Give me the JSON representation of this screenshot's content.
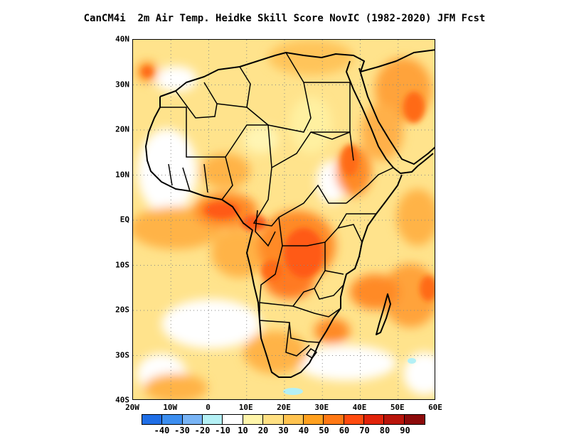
{
  "title": "CanCM4i  2m Air Temp. Heidke Skill Score NovIC (1982-2020) JFM Fcst",
  "map": {
    "lat_range": [
      -40,
      40
    ],
    "lon_range": [
      -20,
      60
    ],
    "grid": "dotted",
    "lat_labels": [
      "40N",
      "30N",
      "20N",
      "10N",
      "EQ",
      "10S",
      "20S",
      "30S",
      "40S"
    ],
    "lon_labels": [
      "20W",
      "10W",
      "0",
      "10E",
      "20E",
      "30E",
      "40E",
      "50E",
      "60E"
    ]
  },
  "colorbar": {
    "tick_labels": [
      "-40",
      "-30",
      "-20",
      "-10",
      "10",
      "20",
      "30",
      "40",
      "50",
      "60",
      "70",
      "80",
      "90"
    ],
    "colors": [
      "#1f6ee6",
      "#3c8ef0",
      "#78b4f5",
      "#b4f0f5",
      "#ffffff",
      "#fff5aa",
      "#ffe082",
      "#ffc34f",
      "#ffa01e",
      "#ff7814",
      "#ff4b0f",
      "#e1230a",
      "#b9140a",
      "#8c0a0a"
    ]
  }
}
